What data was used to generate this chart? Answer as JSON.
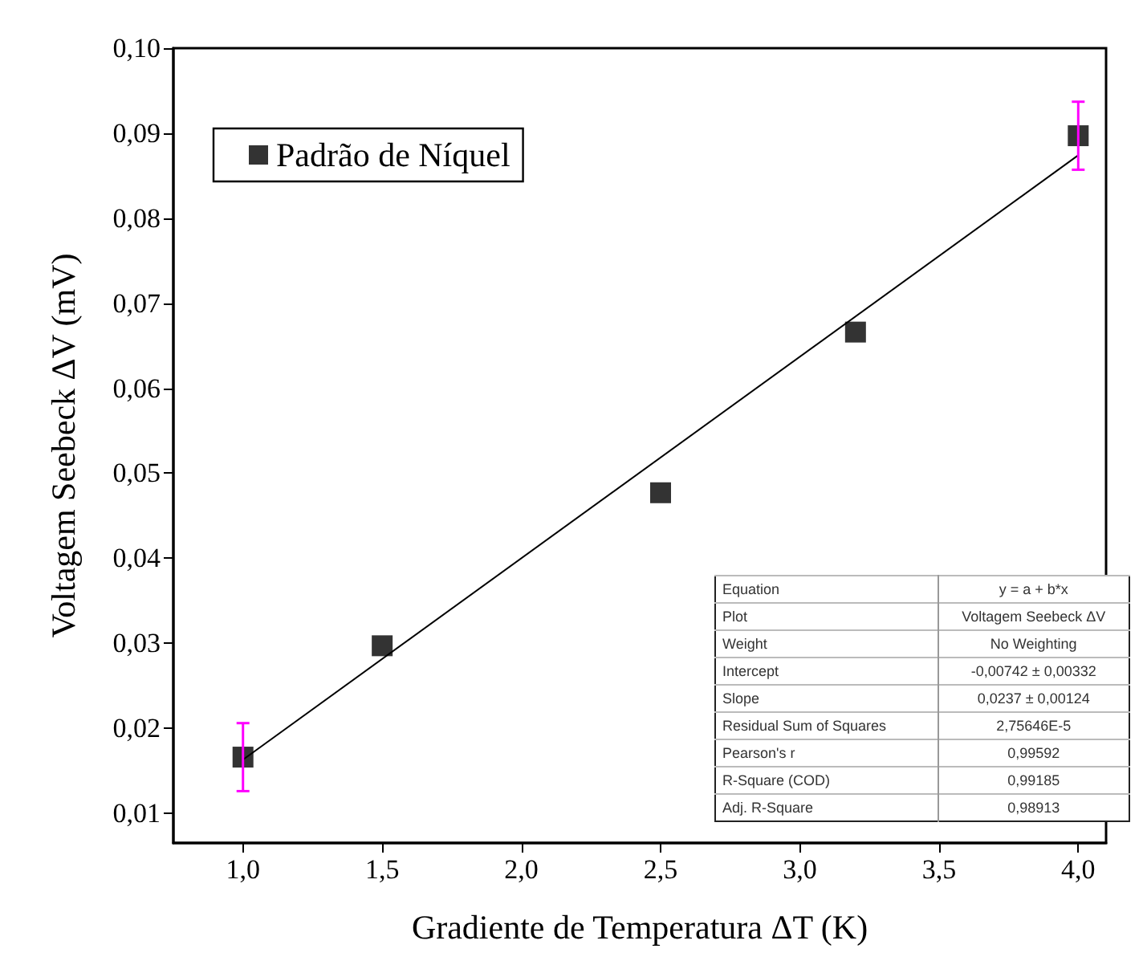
{
  "chart_data": {
    "type": "scatter",
    "xlabel": "Gradiente de Temperatura ΔT (K)",
    "ylabel": "Voltagem Seebeck ΔV (mV)",
    "x": [
      1.0,
      1.5,
      2.5,
      3.2,
      4.0
    ],
    "series": [
      {
        "name": "Padrão de Níquel",
        "type": "scatter",
        "color": "#000000",
        "values": [
          0.0166,
          0.0297,
          0.0477,
          0.0666,
          0.0897
        ],
        "errors": [
          0.004,
          null,
          null,
          null,
          0.004
        ]
      },
      {
        "type": "line",
        "color": "#000000",
        "marker": "none",
        "x": [
          1.0,
          4.0
        ],
        "values": [
          0.0163,
          0.0874
        ]
      }
    ],
    "xlim": [
      0.75,
      4.1
    ],
    "marker": "square",
    "ylim": [
      0.0065,
      0.1
    ],
    "xticks": [
      {
        "value": 1,
        "label": "1,0"
      },
      {
        "value": 1.5,
        "label": "1,5"
      },
      {
        "value": 2,
        "label": "2,0"
      },
      {
        "value": 2.5,
        "label": "2,5"
      },
      {
        "value": 3,
        "label": "3,0"
      },
      {
        "value": 3.5,
        "label": "3,5"
      },
      {
        "value": 4,
        "label": "4,0"
      }
    ],
    "yticks": [
      {
        "value": 0.01,
        "label": "0,01"
      },
      {
        "value": 0.02,
        "label": "0,02"
      },
      {
        "value": 0.03,
        "label": "0,03"
      },
      {
        "value": 0.04,
        "label": "0,04"
      },
      {
        "value": 0.05,
        "label": "0,05"
      },
      {
        "value": 0.06,
        "label": "0,06"
      },
      {
        "value": 0.07,
        "label": "0,07"
      },
      {
        "value": 0.08,
        "label": "0,08"
      },
      {
        "value": 0.09,
        "label": "0,09"
      },
      {
        "value": 0.1,
        "label": "0,10"
      }
    ],
    "grid": false,
    "legend": "top left",
    "annotations": [
      "Equation",
      "y = a + b*x",
      "Plot",
      "Voltagem Seebeck ΔV",
      "Weight",
      "No Weighting",
      "Intercept",
      "-0,00742 ± 0,00332",
      "Slope",
      "0,0237 ± 0,00124",
      "Residual Sum of Squares",
      "2,75646E-5",
      "Pearson's r",
      "0,99592",
      "R-Square (COD)",
      "0,99185",
      "Adj. R-Square",
      "0,98913"
    ]
  }
}
